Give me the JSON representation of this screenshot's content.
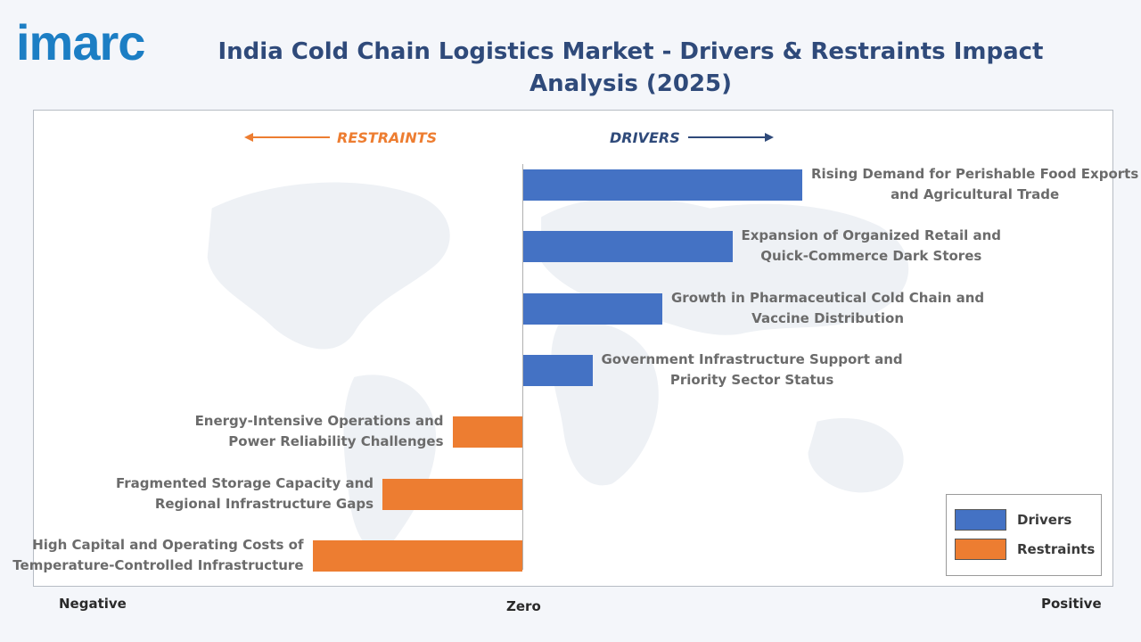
{
  "logo": "imarc",
  "title": "India Cold Chain Logistics Market - Drivers & Restraints Impact Analysis (2025)",
  "colors": {
    "drivers": "#4472c4",
    "restraints": "#ed7d31",
    "title": "#2f4a7a",
    "logo": "#1c7ec4"
  },
  "headers": {
    "restraints": "RESTRAINTS",
    "drivers": "DRIVERS"
  },
  "axis": {
    "negative": "Negative",
    "zero": "Zero",
    "positive": "Positive"
  },
  "legend": {
    "drivers": "Drivers",
    "restraints": "Restraints"
  },
  "chart_data": {
    "type": "bar",
    "orientation": "horizontal",
    "title": "India Cold Chain Logistics Market - Drivers & Restraints Impact Analysis (2025)",
    "categories": [
      [
        "Rising Demand for Perishable Food Exports",
        "and Agricultural Trade"
      ],
      [
        "Expansion of Organized Retail and",
        "Quick-Commerce Dark Stores"
      ],
      [
        "Growth in Pharmaceutical Cold Chain and",
        "Vaccine Distribution"
      ],
      [
        "Government Infrastructure Support and",
        "Priority Sector Status"
      ],
      [
        "Energy-Intensive Operations and",
        "Power Reliability Challenges"
      ],
      [
        "Fragmented Storage Capacity and",
        "Regional Infrastructure Gaps"
      ],
      [
        "High Capital and Operating Costs of",
        "Temperature-Controlled Infrastructure"
      ]
    ],
    "series": [
      {
        "name": "Drivers",
        "values": [
          4,
          3,
          2,
          1,
          0,
          0,
          0
        ]
      },
      {
        "name": "Restraints",
        "values": [
          0,
          0,
          0,
          0,
          -1,
          -2,
          -3
        ]
      }
    ],
    "xlim": [
      -7,
      8.5
    ],
    "grid": false,
    "legend_position": "bottom-right"
  }
}
